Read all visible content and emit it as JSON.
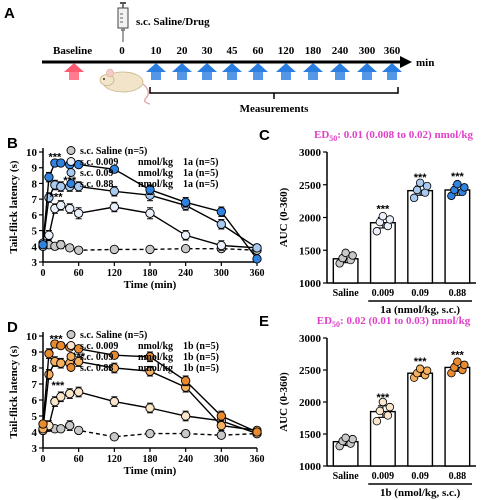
{
  "panel_a": {
    "letter": "A",
    "injection_label": "s.c. Saline/Drug",
    "baseline_label": "Baseline",
    "time_points": [
      "0",
      "10",
      "20",
      "30",
      "45",
      "60",
      "120",
      "180",
      "240",
      "300",
      "360"
    ],
    "unit_label": "min",
    "measurements_label": "Measurements",
    "colors": {
      "baseline_arrow": "#ff5a70",
      "measure_arrow": "#2a7de1"
    }
  },
  "stars": "***",
  "chart_data": [
    {
      "id": "B",
      "letter": "B",
      "type": "line",
      "xlabel": "Time (min)",
      "ylabel": "Tail-flick latency (s)",
      "xlim": [
        0,
        360
      ],
      "ylim": [
        3,
        10
      ],
      "xticks": [
        0,
        60,
        120,
        180,
        240,
        300,
        360
      ],
      "yticks": [
        3,
        4,
        5,
        6,
        7,
        8,
        9,
        10
      ],
      "series": [
        {
          "name": "s.c. Saline (n=5)",
          "legend_parts": [
            "s.c. Saline (n=5)"
          ],
          "color": "#c8c8c8",
          "dashed": true,
          "x": [
            0,
            10,
            20,
            30,
            45,
            60,
            120,
            180,
            240,
            300,
            360
          ],
          "y": [
            4.0,
            4.1,
            4.0,
            4.1,
            3.9,
            3.75,
            3.8,
            3.8,
            3.85,
            3.85,
            3.75
          ],
          "err": [
            0.2,
            0.2,
            0.2,
            0.25,
            0.2,
            0.2,
            0.15,
            0.15,
            0.15,
            0.15,
            0.15
          ]
        },
        {
          "name": "s.c. 0.009 nmol/kg 1a (n=5)",
          "legend_parts": [
            "s.c. 0.009",
            "nmol/kg",
            "1a (n=5)"
          ],
          "color": "#eaf1fb",
          "dashed": false,
          "x": [
            0,
            10,
            20,
            30,
            45,
            60,
            120,
            180,
            240,
            300,
            360
          ],
          "y": [
            4.0,
            4.7,
            6.4,
            6.6,
            6.4,
            6.1,
            6.5,
            6.1,
            4.7,
            4.05,
            3.9
          ],
          "err": [
            0.2,
            0.3,
            0.3,
            0.3,
            0.3,
            0.35,
            0.3,
            0.35,
            0.3,
            0.3,
            0.2
          ]
        },
        {
          "name": "s.c. 0.09 nmol/kg 1a (n=5)",
          "legend_parts": [
            "s.c. 0.09",
            "nmol/kg",
            "1a (n=5)"
          ],
          "color": "#a8caf0",
          "dashed": false,
          "x": [
            0,
            10,
            20,
            30,
            45,
            60,
            120,
            180,
            240,
            300,
            360
          ],
          "y": [
            4.2,
            7.1,
            7.9,
            7.8,
            7.8,
            7.8,
            7.5,
            7.25,
            6.6,
            5.4,
            3.9
          ],
          "err": [
            0.2,
            0.3,
            0.3,
            0.3,
            0.3,
            0.3,
            0.3,
            0.35,
            0.3,
            0.3,
            0.2
          ]
        },
        {
          "name": "s.c. 0.88 nmol/kg 1a (n=5)",
          "legend_parts": [
            "s.c. 0.88",
            "nmol/kg",
            "1a (n=5)"
          ],
          "color": "#2f82e0",
          "dashed": false,
          "x": [
            0,
            10,
            20,
            30,
            45,
            60,
            120,
            180,
            240,
            300,
            360
          ],
          "y": [
            4.1,
            8.4,
            9.3,
            9.3,
            9.2,
            9.2,
            8.9,
            7.6,
            6.8,
            6.2,
            3.2
          ],
          "err": [
            0.2,
            0.3,
            0.2,
            0.2,
            0.2,
            0.2,
            0.2,
            0.3,
            0.3,
            0.3,
            0.2
          ]
        }
      ],
      "annotations": [
        {
          "text": "***",
          "x": 20,
          "y": 9.45
        },
        {
          "text": "***",
          "x": 45,
          "y": 7.95
        },
        {
          "text": "***",
          "x": 22,
          "y": 6.9
        }
      ]
    },
    {
      "id": "C",
      "letter": "C",
      "type": "bar",
      "title": "ED",
      "title_sub": "50",
      "title_rest": ": 0.01 (0.008 to 0.02) nmol/kg",
      "categories": [
        "Saline",
        "0.009",
        "0.09",
        "0.88"
      ],
      "xlabel": "1a (nmol/kg, s.c.)",
      "ylabel": "AUC (0-360)",
      "ylim": [
        1000,
        3000
      ],
      "yticks": [
        1000,
        1500,
        2000,
        2500,
        3000
      ],
      "values": [
        1370,
        1920,
        2410,
        2420
      ],
      "err": [
        60,
        80,
        70,
        80
      ],
      "stars": [
        "",
        "***",
        "***",
        "***"
      ],
      "colors": [
        "#c8c8c8",
        "#eaf1fb",
        "#a8caf0",
        "#2f82e0"
      ],
      "points": [
        [
          1300,
          1350,
          1380,
          1420,
          1460
        ],
        [
          1790,
          1870,
          1930,
          1970,
          2020
        ],
        [
          2300,
          2380,
          2420,
          2480,
          2530
        ],
        [
          2330,
          2390,
          2420,
          2460,
          2510
        ]
      ]
    },
    {
      "id": "D",
      "letter": "D",
      "type": "line",
      "xlabel": "Time (min)",
      "ylabel": "Tail-flick latency (s)",
      "xlim": [
        0,
        360
      ],
      "ylim": [
        3,
        10
      ],
      "xticks": [
        0,
        60,
        120,
        180,
        240,
        300,
        360
      ],
      "yticks": [
        3,
        4,
        5,
        6,
        7,
        8,
        9,
        10
      ],
      "series": [
        {
          "name": "s.c. Saline (n=5)",
          "legend_parts": [
            "s.c. Saline (n=5)"
          ],
          "color": "#c8c8c8",
          "dashed": true,
          "x": [
            0,
            10,
            20,
            30,
            45,
            60,
            120,
            180,
            240,
            300,
            360
          ],
          "y": [
            4.1,
            4.3,
            4.2,
            4.2,
            4.4,
            4.1,
            3.7,
            3.9,
            3.9,
            3.8,
            3.9
          ],
          "err": [
            0.2,
            0.25,
            0.2,
            0.2,
            0.3,
            0.2,
            0.15,
            0.15,
            0.15,
            0.15,
            0.15
          ]
        },
        {
          "name": "s.c. 0.009 nmol/kg 1b (n=5)",
          "legend_parts": [
            "s.c. 0.009",
            "nmol/kg",
            "1b (n=5)"
          ],
          "color": "#fbe6cc",
          "dashed": false,
          "x": [
            0,
            10,
            20,
            30,
            45,
            60,
            120,
            180,
            240,
            300,
            360
          ],
          "y": [
            4.1,
            4.4,
            5.9,
            6.2,
            6.4,
            6.5,
            5.9,
            5.5,
            5.0,
            4.7,
            3.9
          ],
          "err": [
            0.2,
            0.3,
            0.3,
            0.3,
            0.3,
            0.3,
            0.3,
            0.3,
            0.3,
            0.3,
            0.2
          ]
        },
        {
          "name": "s.c. 0.09 nmol/kg 1b (n=5)",
          "legend_parts": [
            "s.c. 0.09",
            "nmol/kg",
            "1b (n=5)"
          ],
          "color": "#f5b060",
          "dashed": false,
          "x": [
            0,
            10,
            20,
            30,
            45,
            60,
            120,
            180,
            240,
            300,
            360
          ],
          "y": [
            4.2,
            7.6,
            8.4,
            8.3,
            8.3,
            8.4,
            8.0,
            7.8,
            6.8,
            4.4,
            4.1
          ],
          "err": [
            0.2,
            0.3,
            0.3,
            0.3,
            0.3,
            0.3,
            0.3,
            0.3,
            0.3,
            0.3,
            0.2
          ]
        },
        {
          "name": "s.c. 0.88 nmol/kg 1b (n=5)",
          "legend_parts": [
            "s.c. 0.88",
            "nmol/kg",
            "1b (n=5)"
          ],
          "color": "#e88a2e",
          "dashed": false,
          "x": [
            0,
            10,
            20,
            30,
            45,
            60,
            120,
            180,
            240,
            300,
            360
          ],
          "y": [
            4.5,
            8.9,
            9.5,
            9.4,
            9.3,
            9.2,
            8.8,
            8.7,
            7.2,
            5.0,
            4.0
          ],
          "err": [
            0.2,
            0.3,
            0.2,
            0.2,
            0.2,
            0.2,
            0.2,
            0.3,
            0.3,
            0.3,
            0.2
          ]
        }
      ],
      "annotations": [
        {
          "text": "***",
          "x": 22,
          "y": 9.6
        },
        {
          "text": "***",
          "x": 60,
          "y": 8.5
        },
        {
          "text": "***",
          "x": 25,
          "y": 6.7
        }
      ]
    },
    {
      "id": "E",
      "letter": "E",
      "type": "bar",
      "title": "ED",
      "title_sub": "50",
      "title_rest": ": 0.02 (0.01 to 0.03) nmol/kg",
      "categories": [
        "Saline",
        "0.009",
        "0.09",
        "0.88"
      ],
      "xlabel": "1b (nmol/kg, s.c.)",
      "ylabel": "AUC (0-360)",
      "ylim": [
        1000,
        3000
      ],
      "yticks": [
        1000,
        1500,
        2000,
        2500,
        3000
      ],
      "values": [
        1380,
        1850,
        2450,
        2540
      ],
      "err": [
        60,
        90,
        50,
        60
      ],
      "stars": [
        "",
        "***",
        "***",
        "***"
      ],
      "colors": [
        "#c8c8c8",
        "#fbe6cc",
        "#f5b060",
        "#e88a2e"
      ],
      "points": [
        [
          1310,
          1350,
          1390,
          1420,
          1440
        ],
        [
          1700,
          1790,
          1860,
          1920,
          2000
        ],
        [
          2380,
          2420,
          2450,
          2490,
          2520
        ],
        [
          2450,
          2500,
          2540,
          2580,
          2630
        ]
      ]
    }
  ]
}
